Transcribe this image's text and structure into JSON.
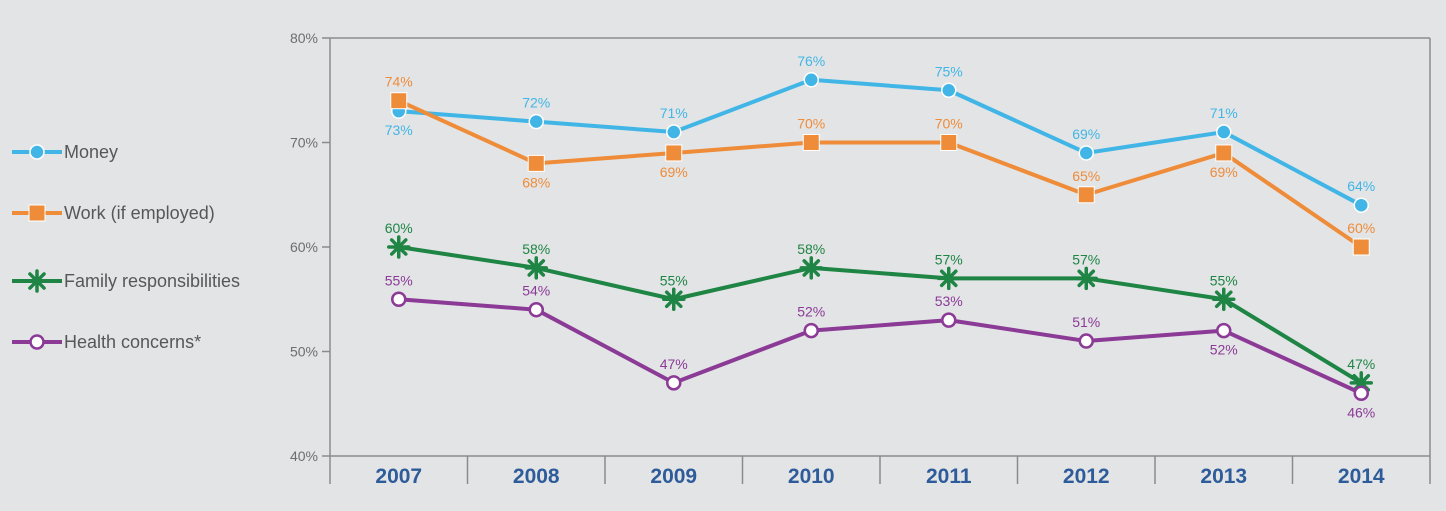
{
  "chart_data": {
    "type": "line",
    "categories": [
      "2007",
      "2008",
      "2009",
      "2010",
      "2011",
      "2012",
      "2013",
      "2014"
    ],
    "y_ticks": [
      "40%",
      "50%",
      "60%",
      "70%",
      "80%"
    ],
    "ylim": [
      40,
      80
    ],
    "unit": "%",
    "grid": false,
    "legend_position": "left",
    "series": [
      {
        "name": "Money",
        "color": "#41b6e6",
        "marker": "circle-filled",
        "values": [
          73,
          72,
          71,
          76,
          75,
          69,
          71,
          64
        ],
        "labels": [
          "73%",
          "72%",
          "71%",
          "76%",
          "75%",
          "69%",
          "71%",
          "64%"
        ],
        "label_positions": [
          "below",
          "above",
          "above",
          "above",
          "above",
          "above",
          "above",
          "above"
        ]
      },
      {
        "name": "Work (if employed)",
        "color": "#ee8c3a",
        "marker": "square",
        "values": [
          74,
          68,
          69,
          70,
          70,
          65,
          69,
          60
        ],
        "labels": [
          "74%",
          "68%",
          "69%",
          "70%",
          "70%",
          "65%",
          "69%",
          "60%"
        ],
        "label_positions": [
          "above",
          "below",
          "below",
          "above",
          "above",
          "above",
          "below",
          "above"
        ]
      },
      {
        "name": "Family responsibilities",
        "color": "#1e8544",
        "marker": "star",
        "values": [
          60,
          58,
          55,
          58,
          57,
          57,
          55,
          47
        ],
        "labels": [
          "60%",
          "58%",
          "55%",
          "58%",
          "57%",
          "57%",
          "55%",
          "47%"
        ],
        "label_positions": [
          "above",
          "above",
          "above",
          "above",
          "above",
          "above",
          "above",
          "above"
        ]
      },
      {
        "name": "Health concerns*",
        "color": "#8b3a96",
        "marker": "circle-open",
        "values": [
          55,
          54,
          47,
          52,
          53,
          51,
          52,
          46
        ],
        "labels": [
          "55%",
          "54%",
          "47%",
          "52%",
          "53%",
          "51%",
          "52%",
          "46%"
        ],
        "label_positions": [
          "above",
          "above",
          "above",
          "above",
          "above",
          "above",
          "below",
          "below"
        ]
      }
    ]
  }
}
